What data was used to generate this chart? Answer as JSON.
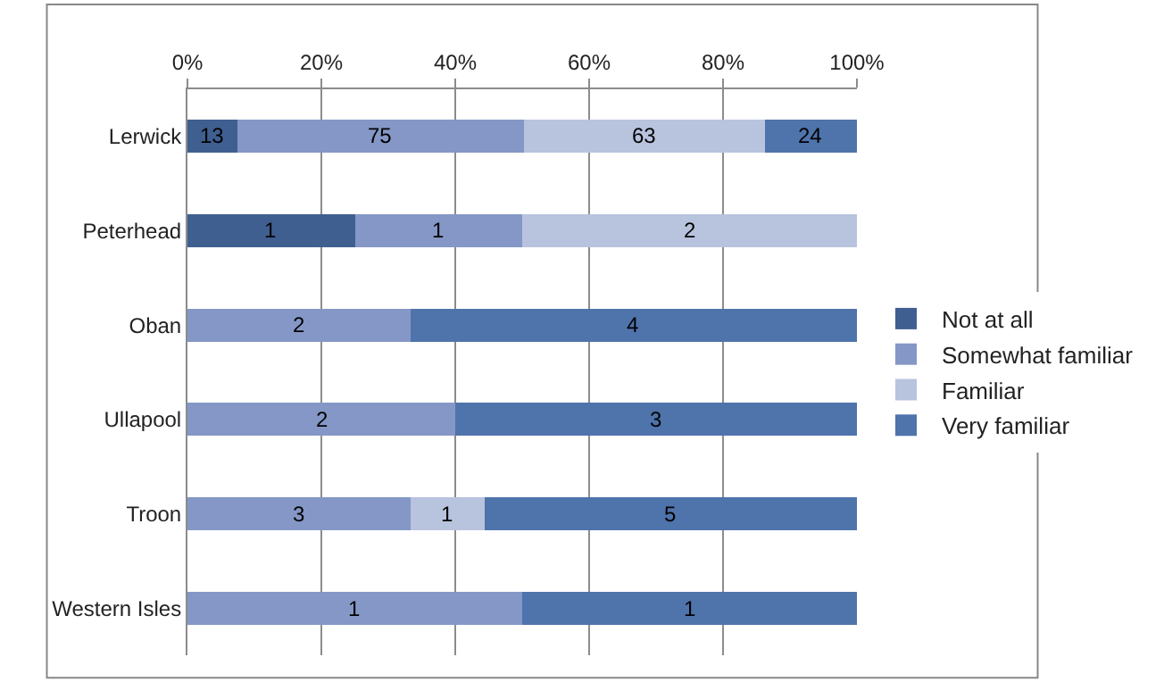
{
  "chart_data": {
    "type": "bar",
    "orientation": "horizontal",
    "stacked": true,
    "categories": [
      "Lerwick",
      "Peterhead",
      "Oban",
      "Ullapool",
      "Troon",
      "Western Isles"
    ],
    "series": [
      {
        "name": "Not at all",
        "color": "#3f5f91",
        "values": [
          7.4,
          25,
          null,
          null,
          null,
          null
        ]
      },
      {
        "name": "Somewhat familiar",
        "color": "#8497c6",
        "values": [
          42.9,
          25,
          33.3,
          40,
          33.3,
          50
        ]
      },
      {
        "name": "Familiar",
        "color": "#b8c3de",
        "values": [
          36,
          50,
          null,
          null,
          11.1,
          null
        ]
      },
      {
        "name": "Very familiar",
        "color": "#4f73ab",
        "values": [
          13.7,
          null,
          66.7,
          60,
          55.6,
          50
        ]
      }
    ],
    "annotations": [
      "13",
      "75",
      "63",
      "24",
      "1",
      "1",
      "2",
      "2",
      "4",
      "2",
      "3",
      "3",
      "1",
      "5",
      "1",
      "1"
    ],
    "xlim": [
      0,
      100
    ],
    "xticks": [
      {
        "value": 0,
        "label": "0%"
      },
      {
        "value": 20,
        "label": "20%"
      },
      {
        "value": 40,
        "label": "40%"
      },
      {
        "value": 60,
        "label": "60%"
      },
      {
        "value": 80,
        "label": "80%"
      },
      {
        "value": 100,
        "label": "100%"
      }
    ],
    "grid": "x",
    "legend": "right"
  }
}
